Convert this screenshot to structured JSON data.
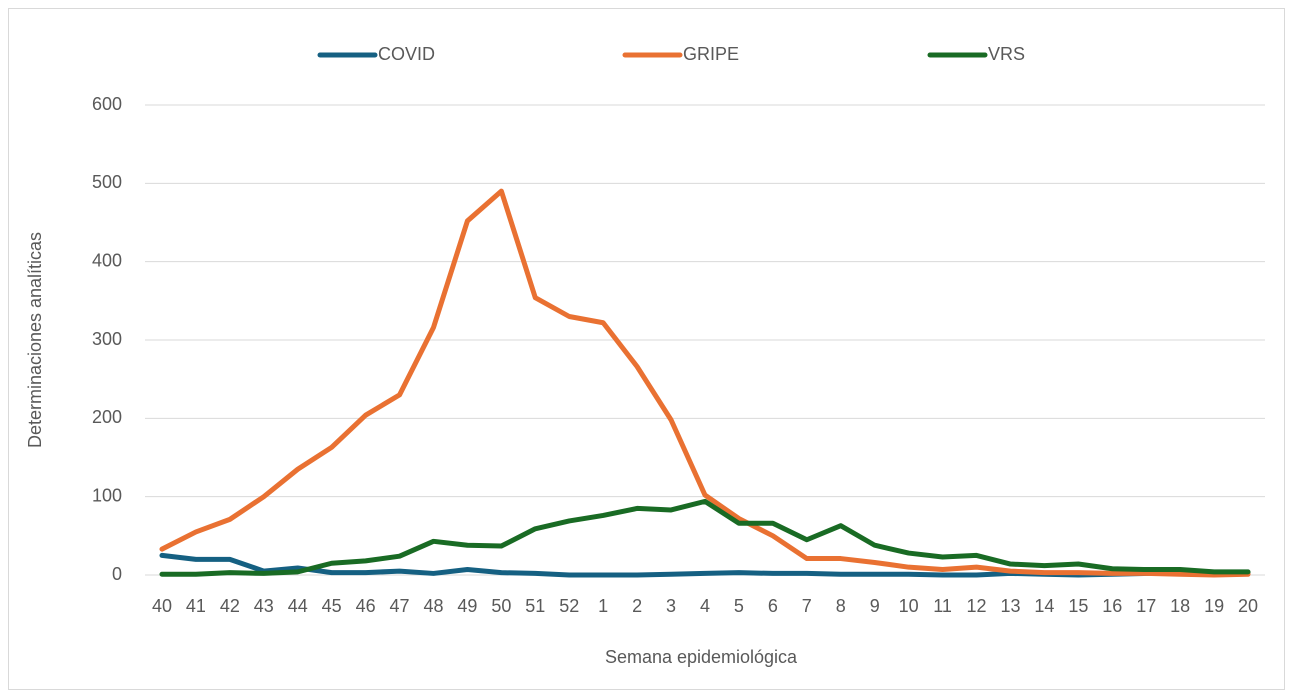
{
  "chart_data": {
    "type": "line",
    "categories": [
      "40",
      "41",
      "42",
      "43",
      "44",
      "45",
      "46",
      "47",
      "48",
      "49",
      "50",
      "51",
      "52",
      "1",
      "2",
      "3",
      "4",
      "5",
      "6",
      "7",
      "8",
      "9",
      "10",
      "11",
      "12",
      "13",
      "14",
      "15",
      "16",
      "17",
      "18",
      "19",
      "20"
    ],
    "series": [
      {
        "name": "COVID",
        "color": "#156082",
        "values": [
          25,
          20,
          20,
          5,
          9,
          3,
          3,
          5,
          2,
          7,
          3,
          2,
          0,
          0,
          0,
          1,
          2,
          3,
          2,
          2,
          1,
          1,
          1,
          0,
          0,
          2,
          1,
          0,
          1,
          2,
          2,
          3,
          3
        ]
      },
      {
        "name": "GRIPE",
        "color": "#e97132",
        "values": [
          33,
          55,
          71,
          100,
          135,
          163,
          204,
          230,
          316,
          452,
          490,
          354,
          330,
          322,
          266,
          198,
          102,
          72,
          50,
          21,
          21,
          16,
          10,
          7,
          10,
          5,
          3,
          3,
          2,
          2,
          1,
          0,
          1
        ]
      },
      {
        "name": "VRS",
        "color": "#196b24",
        "values": [
          1,
          1,
          3,
          2,
          4,
          15,
          18,
          24,
          43,
          38,
          37,
          59,
          69,
          76,
          85,
          83,
          94,
          66,
          66,
          45,
          63,
          38,
          28,
          23,
          25,
          14,
          12,
          14,
          8,
          7,
          7,
          4,
          4
        ]
      }
    ],
    "xlabel": "Semana epidemiológica",
    "ylabel": "Determinaciones analíticas",
    "ylim": [
      0,
      600
    ],
    "yticks": [
      0,
      100,
      200,
      300,
      400,
      500,
      600
    ],
    "grid": true,
    "legend": "top"
  }
}
